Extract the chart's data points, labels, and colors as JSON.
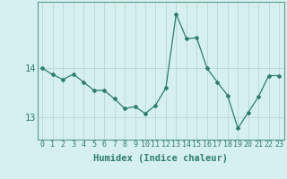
{
  "x": [
    0,
    1,
    2,
    3,
    4,
    5,
    6,
    7,
    8,
    9,
    10,
    11,
    12,
    13,
    14,
    15,
    16,
    17,
    18,
    19,
    20,
    21,
    22,
    23
  ],
  "y": [
    14.0,
    13.87,
    13.77,
    13.88,
    13.72,
    13.55,
    13.55,
    13.38,
    13.18,
    13.22,
    13.08,
    13.25,
    13.6,
    15.1,
    14.6,
    14.62,
    14.0,
    13.72,
    13.45,
    12.78,
    13.1,
    13.42,
    13.85,
    13.85
  ],
  "line_color": "#2d7d6e",
  "marker": "D",
  "markersize": 2.0,
  "linewidth": 0.9,
  "background_color": "#d6f0ef",
  "grid_color": "#b8d8d4",
  "xlabel": "Humidex (Indice chaleur)",
  "ytick_labels": [
    "13",
    "14"
  ],
  "ytick_positions": [
    13,
    14
  ],
  "ylim": [
    12.55,
    15.35
  ],
  "xlim": [
    -0.5,
    23.5
  ],
  "xtick_labels": [
    "0",
    "1",
    "2",
    "3",
    "4",
    "5",
    "6",
    "7",
    "8",
    "9",
    "10",
    "11",
    "12",
    "13",
    "14",
    "15",
    "16",
    "17",
    "18",
    "19",
    "20",
    "21",
    "22",
    "23"
  ],
  "xlabel_fontsize": 7.5,
  "ytick_fontsize": 7.5,
  "xtick_fontsize": 6.0,
  "spine_color": "#5a9a8a"
}
